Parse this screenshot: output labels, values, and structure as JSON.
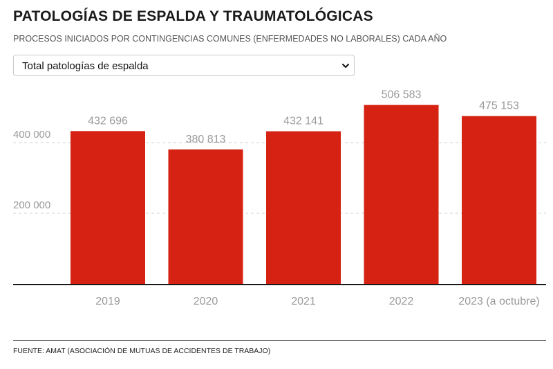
{
  "header": {
    "title": "PATOLOGÍAS DE ESPALDA Y TRAUMATOLÓGICAS",
    "subtitle": "PROCESOS INICIADOS POR CONTINGENCIAS COMUNES (ENFERMEDADES NO LABORALES) CADA AÑO"
  },
  "selector": {
    "selected": "Total patologías de espalda"
  },
  "footer": {
    "source": "FUENTE: AMAT (ASOCIACIÓN DE MUTUAS DE ACCIDENTES DE TRABAJO)"
  },
  "colors": {
    "bar": "#d52212",
    "label": "#9a9a9a",
    "grid": "#d9d9d9",
    "axis": "#1a1a1a"
  },
  "chart_data": {
    "type": "bar",
    "title": "PATOLOGÍAS DE ESPALDA Y TRAUMATOLÓGICAS",
    "categories": [
      "2019",
      "2020",
      "2021",
      "2022",
      "2023 (a octubre)"
    ],
    "values": [
      432696,
      380813,
      432141,
      506583,
      475153
    ],
    "value_labels": [
      "432 696",
      "380 813",
      "432 141",
      "506 583",
      "475 153"
    ],
    "yticks": [
      200000,
      400000
    ],
    "ytick_labels": [
      "200 000",
      "400 000"
    ],
    "ylim": [
      0,
      550000
    ],
    "grid": true,
    "xlabel": "",
    "ylabel": ""
  }
}
